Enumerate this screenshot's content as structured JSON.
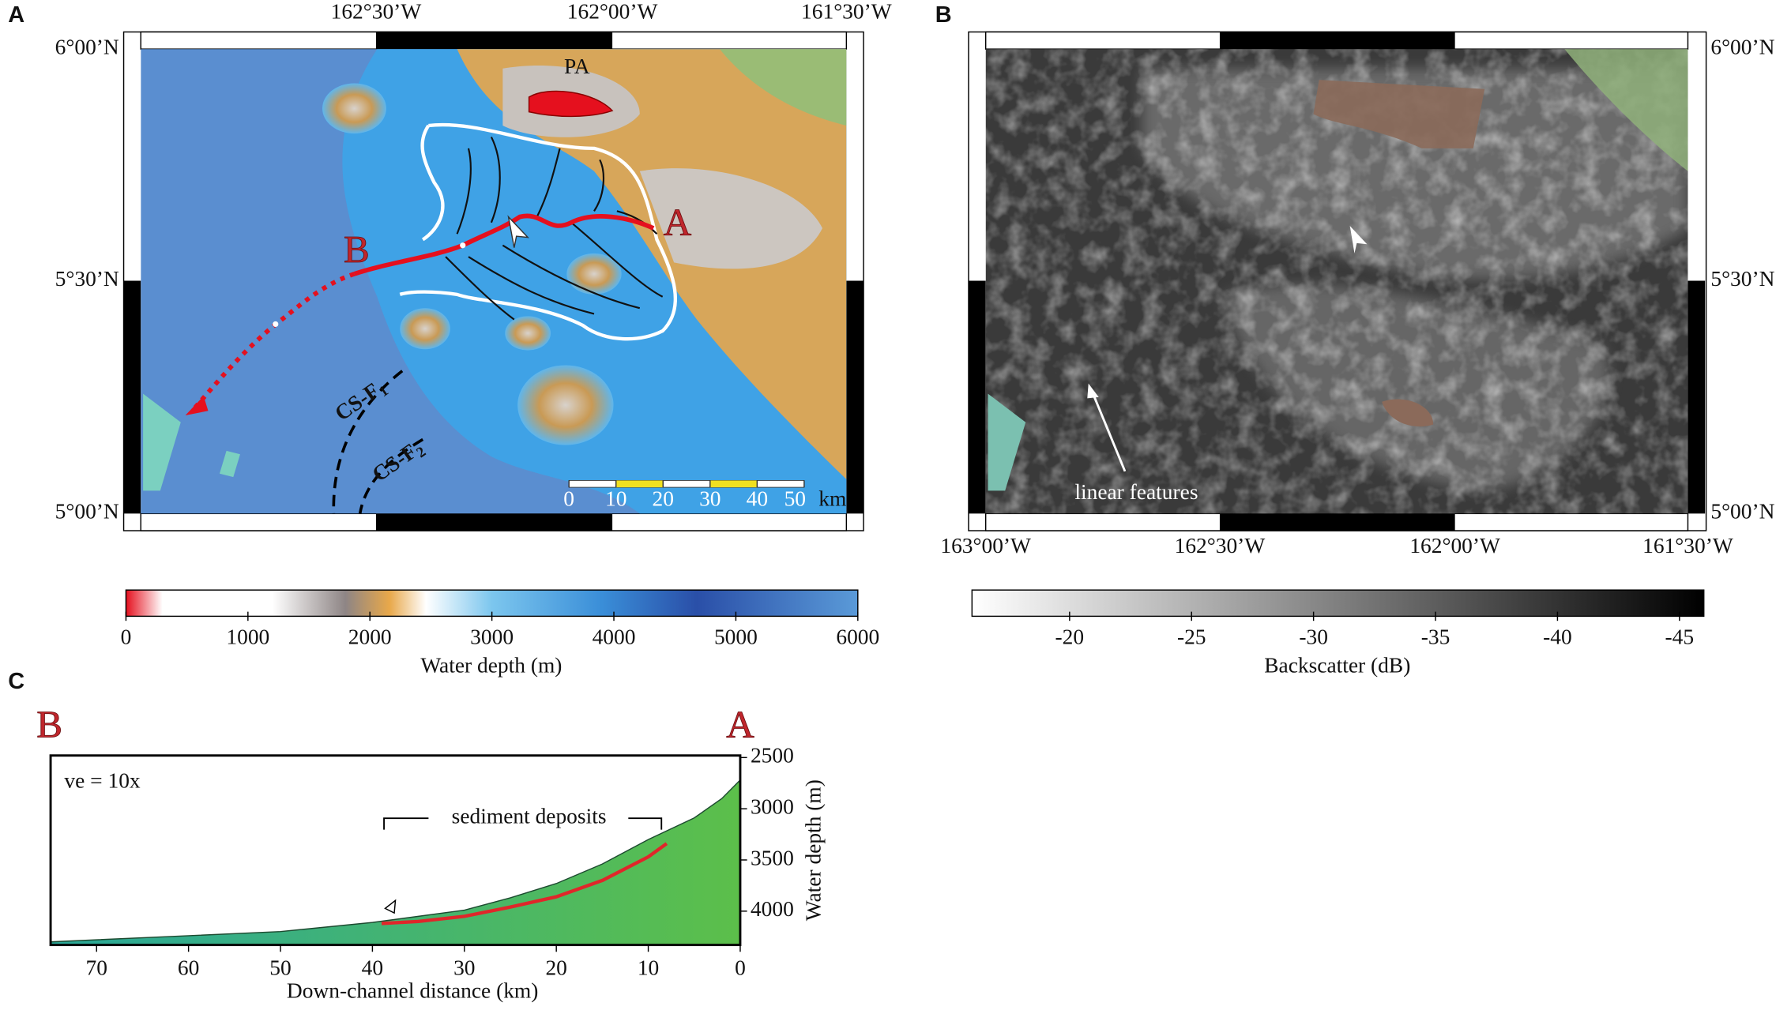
{
  "panel_labels": [
    "A",
    "B",
    "C"
  ],
  "map_a": {
    "lon_labels": [
      "162°30’W",
      "162°00’W",
      "161°30’W"
    ],
    "lat_labels": [
      "6°00’N",
      "5°30’N",
      "5°00’N"
    ],
    "feature_labels": {
      "pa": "PA",
      "a": "A",
      "b": "B"
    },
    "fault_labels": [
      {
        "main": "CS-F",
        "sub": "1"
      },
      {
        "main": "CS-F",
        "sub": "2"
      }
    ],
    "scale_ticks": [
      0,
      10,
      20,
      30,
      40,
      50
    ],
    "scale_unit": "km"
  },
  "map_b": {
    "lon_labels": [
      "163°00’W",
      "162°30’W",
      "162°00’W",
      "161°30’W"
    ],
    "lat_labels": [
      "6°00’N",
      "5°30’N",
      "5°00’N"
    ],
    "annotation": "linear features"
  },
  "depth_colorbar": {
    "label": "Water depth (m)",
    "lim": [
      0,
      6000
    ],
    "ticks": [
      0,
      1000,
      2000,
      3000,
      4000,
      5000,
      6000
    ]
  },
  "backscatter_colorbar": {
    "label": "Backscatter (dB)",
    "lim": [
      -16,
      -46
    ],
    "ticks": [
      -20,
      -25,
      -30,
      -35,
      -40,
      -45
    ]
  },
  "chart_data": {
    "type": "area",
    "x_label": "Down-channel distance (km)",
    "y_label": "Water depth (m)",
    "annotations": [
      "ve = 10x",
      "sediment deposits"
    ],
    "end_labels": [
      "B",
      "A"
    ],
    "xlim": [
      75,
      0
    ],
    "xticks": [
      70,
      60,
      50,
      40,
      30,
      20,
      10,
      0
    ],
    "ylim": [
      4330,
      2480
    ],
    "yticks": [
      2500,
      3000,
      3500,
      4000
    ],
    "series": [
      {
        "color": "#5cbf4a",
        "x": [
          0,
          2,
          5,
          10,
          15,
          20,
          25,
          30,
          35,
          40,
          50,
          60,
          70,
          75
        ],
        "values": [
          2720,
          2900,
          3090,
          3300,
          3540,
          3730,
          3870,
          3990,
          4050,
          4110,
          4200,
          4240,
          4280,
          4300
        ]
      },
      {
        "color": "#e0262a",
        "x": [
          39,
          35,
          30,
          25,
          20,
          15,
          10,
          8
        ],
        "values": [
          4120,
          4100,
          4050,
          3960,
          3860,
          3700,
          3470,
          3340
        ]
      }
    ]
  }
}
